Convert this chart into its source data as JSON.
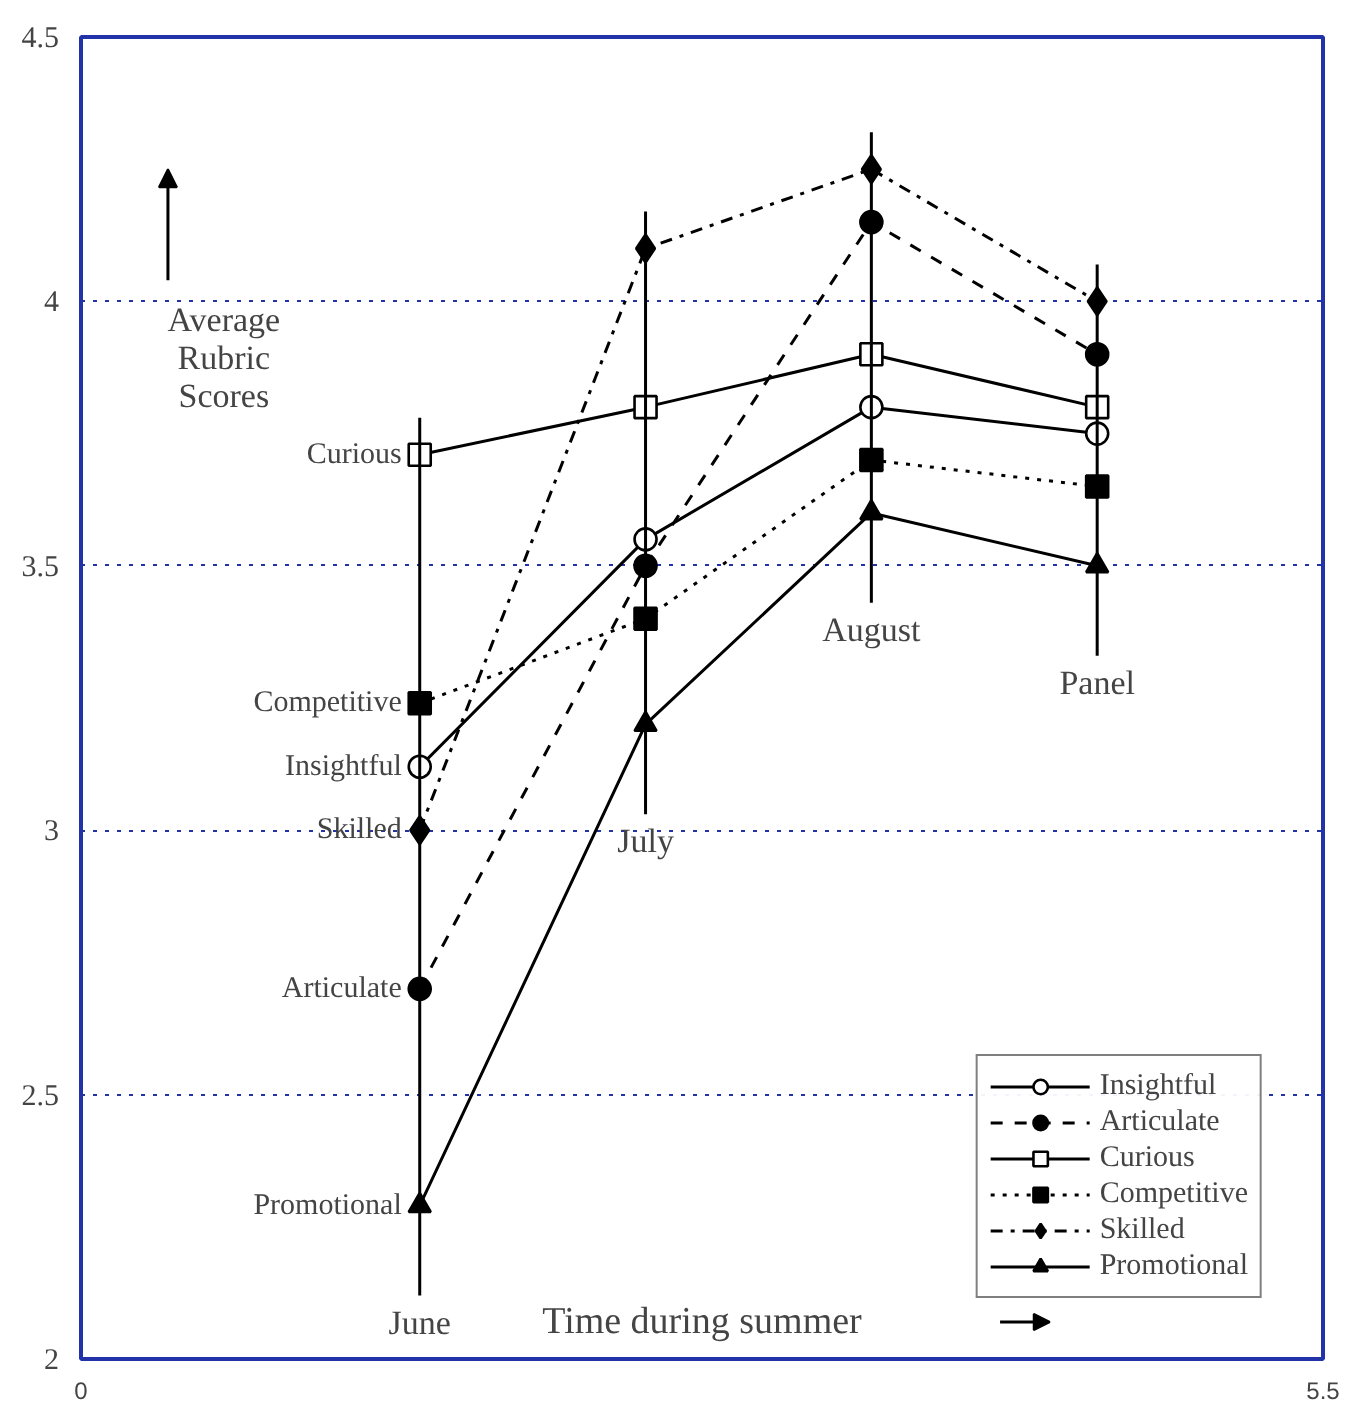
{
  "chart_data": {
    "type": "line",
    "xlabel": "Time during summer",
    "ylabel": "Average Rubric Scores",
    "xlim": [
      0,
      5.5
    ],
    "xticks": [
      0,
      5.5
    ],
    "ylim": [
      2,
      4.5
    ],
    "yticks": [
      2,
      2.5,
      3,
      3.5,
      4,
      4.5
    ],
    "x": [
      1.5,
      2.5,
      3.5,
      4.5
    ],
    "grid": "y",
    "legend": "bottom right",
    "series": [
      {
        "name": "Insightful",
        "color": "#000000",
        "marker": "circle_open",
        "line_style": "solid",
        "values": [
          3.12,
          3.55,
          3.8,
          3.75
        ]
      },
      {
        "name": "Articulate",
        "color": "#000000",
        "marker": "circle",
        "line_style": "dashed",
        "values": [
          2.7,
          3.5,
          4.15,
          3.9
        ]
      },
      {
        "name": "Curious",
        "color": "#000000",
        "marker": "square_open",
        "line_style": "solid",
        "values": [
          3.71,
          3.8,
          3.9,
          3.8
        ]
      },
      {
        "name": "Competitive",
        "color": "#000000",
        "marker": "square",
        "line_style": "dotted",
        "values": [
          3.24,
          3.4,
          3.7,
          3.65
        ]
      },
      {
        "name": "Skilled",
        "color": "#000000",
        "marker": "diamond",
        "line_style": "dashdot",
        "values": [
          3.0,
          4.1,
          4.25,
          4.0
        ]
      },
      {
        "name": "Promotional",
        "color": "#000000",
        "marker": "triangle",
        "line_style": "solid",
        "values": [
          2.29,
          3.2,
          3.6,
          3.5
        ]
      }
    ],
    "ref_lines": [
      {
        "axis": "x",
        "value": 1.5,
        "label": "June"
      },
      {
        "axis": "x",
        "value": 2.5,
        "label": "July"
      },
      {
        "axis": "x",
        "value": 3.5,
        "label": "August"
      },
      {
        "axis": "x",
        "value": 4.5,
        "label": "Panel"
      }
    ]
  }
}
